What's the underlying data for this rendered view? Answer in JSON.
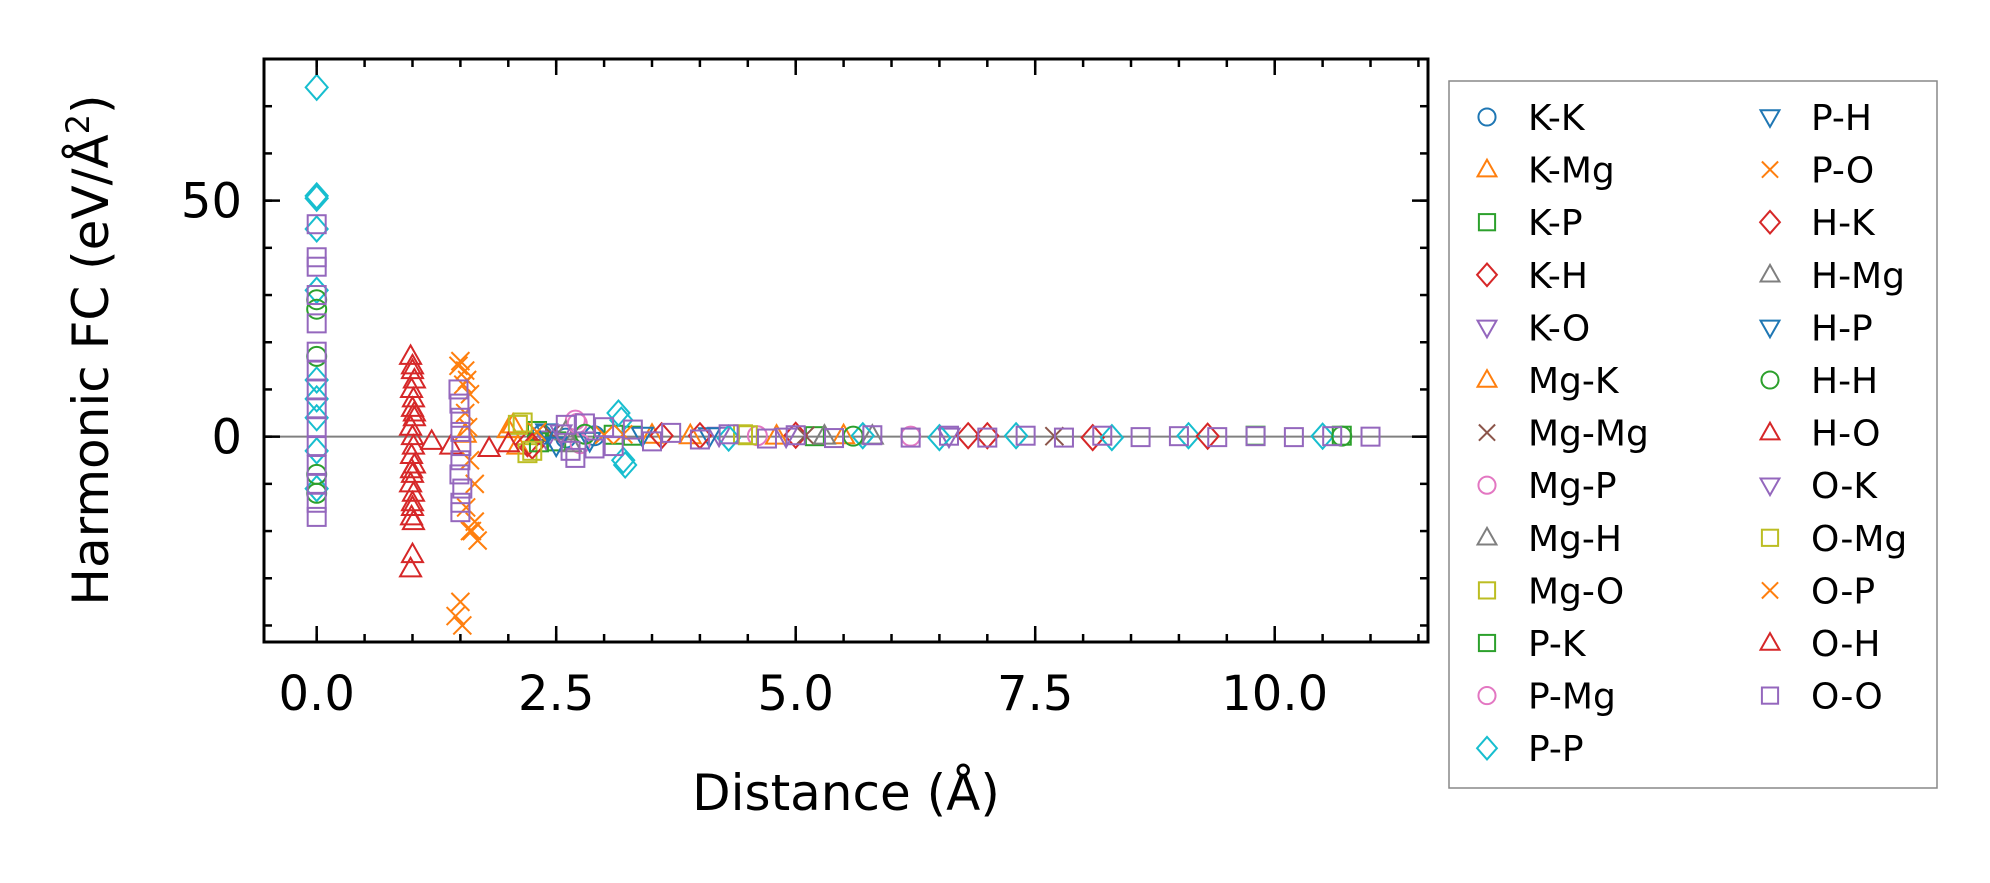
{
  "chart_data": {
    "type": "scatter",
    "title": "",
    "xlabel": "Distance (Å)",
    "ylabel": "Harmonic FC (eV/Å²)",
    "ylabel_base": "Harmonic FC (eV/Å",
    "ylabel_sup": "2",
    "ylabel_end": ")",
    "xlim": [
      -0.55,
      11.6
    ],
    "ylim": [
      -43.5,
      80
    ],
    "xticks": [
      0.0,
      2.5,
      5.0,
      7.5,
      10.0
    ],
    "xtick_labels": [
      "0.0",
      "2.5",
      "5.0",
      "7.5",
      "10.0"
    ],
    "yticks": [
      0,
      50
    ],
    "ytick_labels": [
      "0",
      "50"
    ],
    "x_minor_step": 0.5,
    "y_minor_step": 10,
    "grid": false,
    "zero_line": true,
    "legend_location": "outside-right",
    "series": [
      {
        "name": "K-K",
        "marker": "circle",
        "color": "#1f77b4",
        "points": [
          [
            2.35,
            0.4
          ],
          [
            2.6,
            -0.3
          ],
          [
            2.9,
            0.2
          ]
        ]
      },
      {
        "name": "K-Mg",
        "marker": "triangle-up",
        "color": "#ff7f0e",
        "points": [
          [
            1.55,
            0.5
          ],
          [
            2.0,
            1.5
          ],
          [
            2.1,
            -2
          ],
          [
            3.5,
            0.3
          ],
          [
            4.8,
            0.1
          ],
          [
            5.5,
            0.2
          ]
        ]
      },
      {
        "name": "K-P",
        "marker": "square",
        "color": "#2ca02c",
        "points": [
          [
            2.3,
            1.2
          ],
          [
            2.5,
            -1
          ],
          [
            3.3,
            0.2
          ],
          [
            5.2,
            0.1
          ],
          [
            10.7,
            0.2
          ]
        ]
      },
      {
        "name": "K-H",
        "marker": "diamond",
        "color": "#d62728",
        "points": [
          [
            2.2,
            -1.5
          ],
          [
            3.6,
            0.2
          ],
          [
            5.0,
            0.3
          ],
          [
            7.0,
            0.2
          ],
          [
            8.1,
            -0.2
          ]
        ]
      },
      {
        "name": "K-O",
        "marker": "triangle-down",
        "color": "#9467bd",
        "points": [
          [
            2.4,
            -0.5
          ],
          [
            4.2,
            0.3
          ],
          [
            6.6,
            0.1
          ]
        ]
      },
      {
        "name": "Mg-K",
        "marker": "triangle-up",
        "color": "#ff7f0e",
        "points": [
          [
            2.05,
            2.5
          ],
          [
            3.9,
            0.2
          ]
        ]
      },
      {
        "name": "Mg-Mg",
        "marker": "x",
        "color": "#8c564b",
        "points": [
          [
            2.45,
            0.6
          ],
          [
            5.1,
            0.2
          ],
          [
            7.7,
            0.1
          ]
        ]
      },
      {
        "name": "Mg-P",
        "marker": "circle",
        "color": "#e377c2",
        "points": [
          [
            2.7,
            3.5
          ],
          [
            2.75,
            -1.5
          ],
          [
            4.6,
            0.2
          ]
        ]
      },
      {
        "name": "Mg-H",
        "marker": "triangle-up",
        "color": "#7f7f7f",
        "points": [
          [
            2.6,
            1.0
          ],
          [
            5.8,
            0.1
          ]
        ]
      },
      {
        "name": "Mg-O",
        "marker": "square",
        "color": "#bcbd22",
        "points": [
          [
            2.1,
            2.5
          ],
          [
            2.2,
            -3.5
          ],
          [
            4.45,
            0.5
          ]
        ]
      },
      {
        "name": "P-K",
        "marker": "square",
        "color": "#2ca02c",
        "points": [
          [
            2.32,
            -1.2
          ],
          [
            3.1,
            0.4
          ],
          [
            9.8,
            0.2
          ]
        ]
      },
      {
        "name": "P-Mg",
        "marker": "circle",
        "color": "#e377c2",
        "points": [
          [
            2.72,
            2.8
          ],
          [
            6.2,
            0.1
          ]
        ]
      },
      {
        "name": "P-P",
        "marker": "diamond",
        "color": "#17becf",
        "points": [
          [
            0.0,
            74
          ],
          [
            0.0,
            51
          ],
          [
            0.0,
            50.5
          ],
          [
            0.0,
            44
          ],
          [
            0.0,
            31
          ],
          [
            0.0,
            12
          ],
          [
            0.0,
            8
          ],
          [
            0.0,
            4
          ],
          [
            0.0,
            -3
          ],
          [
            0.0,
            -11
          ],
          [
            3.15,
            5
          ],
          [
            3.18,
            3.5
          ],
          [
            3.2,
            -5
          ],
          [
            3.22,
            -6
          ],
          [
            4.3,
            -0.3
          ],
          [
            5.7,
            0.2
          ],
          [
            6.5,
            -0.2
          ],
          [
            7.3,
            0.2
          ],
          [
            8.3,
            -0.2
          ],
          [
            9.1,
            0.2
          ],
          [
            10.5,
            0.1
          ]
        ]
      },
      {
        "name": "P-H",
        "marker": "triangle-down",
        "color": "#1f77b4",
        "points": [
          [
            2.4,
            1.0
          ],
          [
            2.85,
            -0.8
          ],
          [
            4.1,
            0.2
          ]
        ]
      },
      {
        "name": "P-O",
        "marker": "x",
        "color": "#ff7f0e",
        "points": [
          [
            1.5,
            16
          ],
          [
            1.55,
            14
          ],
          [
            1.57,
            12
          ],
          [
            1.6,
            9
          ],
          [
            1.55,
            5
          ],
          [
            1.58,
            2
          ],
          [
            1.6,
            -5
          ],
          [
            1.65,
            -10
          ],
          [
            1.65,
            -18
          ],
          [
            1.6,
            -20
          ],
          [
            1.68,
            -22
          ],
          [
            1.5,
            -35
          ],
          [
            1.45,
            -38
          ],
          [
            1.52,
            -40
          ],
          [
            2.3,
            1
          ],
          [
            3.0,
            0.4
          ]
        ]
      },
      {
        "name": "H-K",
        "marker": "diamond",
        "color": "#d62728",
        "points": [
          [
            2.25,
            -2
          ],
          [
            4.0,
            0.2
          ],
          [
            6.8,
            0.2
          ],
          [
            9.3,
            0.1
          ]
        ]
      },
      {
        "name": "H-Mg",
        "marker": "triangle-up",
        "color": "#7f7f7f",
        "points": [
          [
            2.65,
            -1.5
          ],
          [
            5.3,
            0.1
          ]
        ]
      },
      {
        "name": "H-P",
        "marker": "triangle-down",
        "color": "#1f77b4",
        "points": [
          [
            2.5,
            -1.8
          ],
          [
            3.4,
            0.3
          ]
        ]
      },
      {
        "name": "H-H",
        "marker": "circle",
        "color": "#2ca02c",
        "points": [
          [
            0.0,
            29
          ],
          [
            0.0,
            27
          ],
          [
            0.0,
            17
          ],
          [
            0.0,
            -8
          ],
          [
            0.0,
            -12
          ],
          [
            2.8,
            0.5
          ],
          [
            5.6,
            0.1
          ],
          [
            10.7,
            0.1
          ]
        ]
      },
      {
        "name": "H-O",
        "marker": "triangle-up",
        "color": "#d62728",
        "points": [
          [
            0.98,
            17
          ],
          [
            1.0,
            14
          ],
          [
            1.02,
            12
          ],
          [
            0.99,
            10
          ],
          [
            1.01,
            8
          ],
          [
            1.0,
            6
          ],
          [
            1.02,
            4
          ],
          [
            0.98,
            2
          ],
          [
            1.0,
            0
          ],
          [
            1.01,
            -2
          ],
          [
            0.99,
            -4
          ],
          [
            1.02,
            -6
          ],
          [
            1.0,
            -8
          ],
          [
            0.98,
            -10
          ],
          [
            1.01,
            -12
          ],
          [
            1.0,
            -14
          ],
          [
            0.99,
            -17
          ],
          [
            1.01,
            -18
          ],
          [
            1.0,
            -25
          ],
          [
            0.98,
            -28
          ],
          [
            1.2,
            -1
          ],
          [
            1.4,
            -2
          ],
          [
            1.8,
            -2.5
          ],
          [
            2.0,
            -1.5
          ]
        ]
      },
      {
        "name": "O-K",
        "marker": "triangle-down",
        "color": "#9467bd",
        "points": [
          [
            2.55,
            0.8
          ],
          [
            4.9,
            0.1
          ]
        ]
      },
      {
        "name": "O-Mg",
        "marker": "square",
        "color": "#bcbd22",
        "points": [
          [
            2.15,
            3
          ],
          [
            2.25,
            -3
          ],
          [
            4.5,
            0.3
          ]
        ]
      },
      {
        "name": "O-P",
        "marker": "x",
        "color": "#ff7f0e",
        "points": [
          [
            1.48,
            15
          ],
          [
            1.53,
            11
          ],
          [
            1.56,
            -15
          ],
          [
            1.62,
            -20
          ],
          [
            3.2,
            0.5
          ]
        ]
      },
      {
        "name": "O-H",
        "marker": "triangle-up",
        "color": "#d62728",
        "points": [
          [
            1.0,
            15
          ],
          [
            1.0,
            -15
          ],
          [
            1.02,
            5
          ],
          [
            0.99,
            -7
          ]
        ]
      },
      {
        "name": "O-O",
        "marker": "square",
        "color": "#9467bd",
        "points": [
          [
            0.0,
            45
          ],
          [
            0.0,
            38
          ],
          [
            0.0,
            36
          ],
          [
            0.0,
            30
          ],
          [
            0.0,
            24
          ],
          [
            0.0,
            18
          ],
          [
            0.0,
            14
          ],
          [
            0.0,
            10
          ],
          [
            0.0,
            6
          ],
          [
            0.0,
            2
          ],
          [
            0.0,
            -2
          ],
          [
            0.0,
            -6
          ],
          [
            0.0,
            -10
          ],
          [
            0.0,
            -14
          ],
          [
            0.0,
            -17
          ],
          [
            1.48,
            10
          ],
          [
            1.49,
            7
          ],
          [
            1.5,
            4
          ],
          [
            1.5,
            1
          ],
          [
            1.51,
            -2
          ],
          [
            1.5,
            -5
          ],
          [
            1.49,
            -8
          ],
          [
            1.52,
            -11
          ],
          [
            1.5,
            -14
          ],
          [
            1.5,
            -16
          ],
          [
            2.6,
            2.5
          ],
          [
            2.65,
            -3
          ],
          [
            2.7,
            -4.5
          ],
          [
            2.8,
            2.8
          ],
          [
            2.9,
            -2.5
          ],
          [
            3.0,
            2
          ],
          [
            3.1,
            -2
          ],
          [
            3.3,
            1.5
          ],
          [
            3.5,
            -1
          ],
          [
            3.7,
            0.8
          ],
          [
            4.0,
            -0.6
          ],
          [
            4.3,
            0.5
          ],
          [
            4.7,
            -0.4
          ],
          [
            5.0,
            0.3
          ],
          [
            5.4,
            -0.3
          ],
          [
            5.8,
            0.3
          ],
          [
            6.2,
            -0.2
          ],
          [
            6.6,
            0.2
          ],
          [
            7.0,
            -0.2
          ],
          [
            7.4,
            0.2
          ],
          [
            7.8,
            -0.2
          ],
          [
            8.2,
            0.2
          ],
          [
            8.6,
            -0.1
          ],
          [
            9.0,
            0.1
          ],
          [
            9.4,
            -0.1
          ],
          [
            9.8,
            0.1
          ],
          [
            10.2,
            -0.1
          ],
          [
            10.6,
            0.1
          ],
          [
            11.0,
            0.0
          ]
        ]
      }
    ]
  }
}
